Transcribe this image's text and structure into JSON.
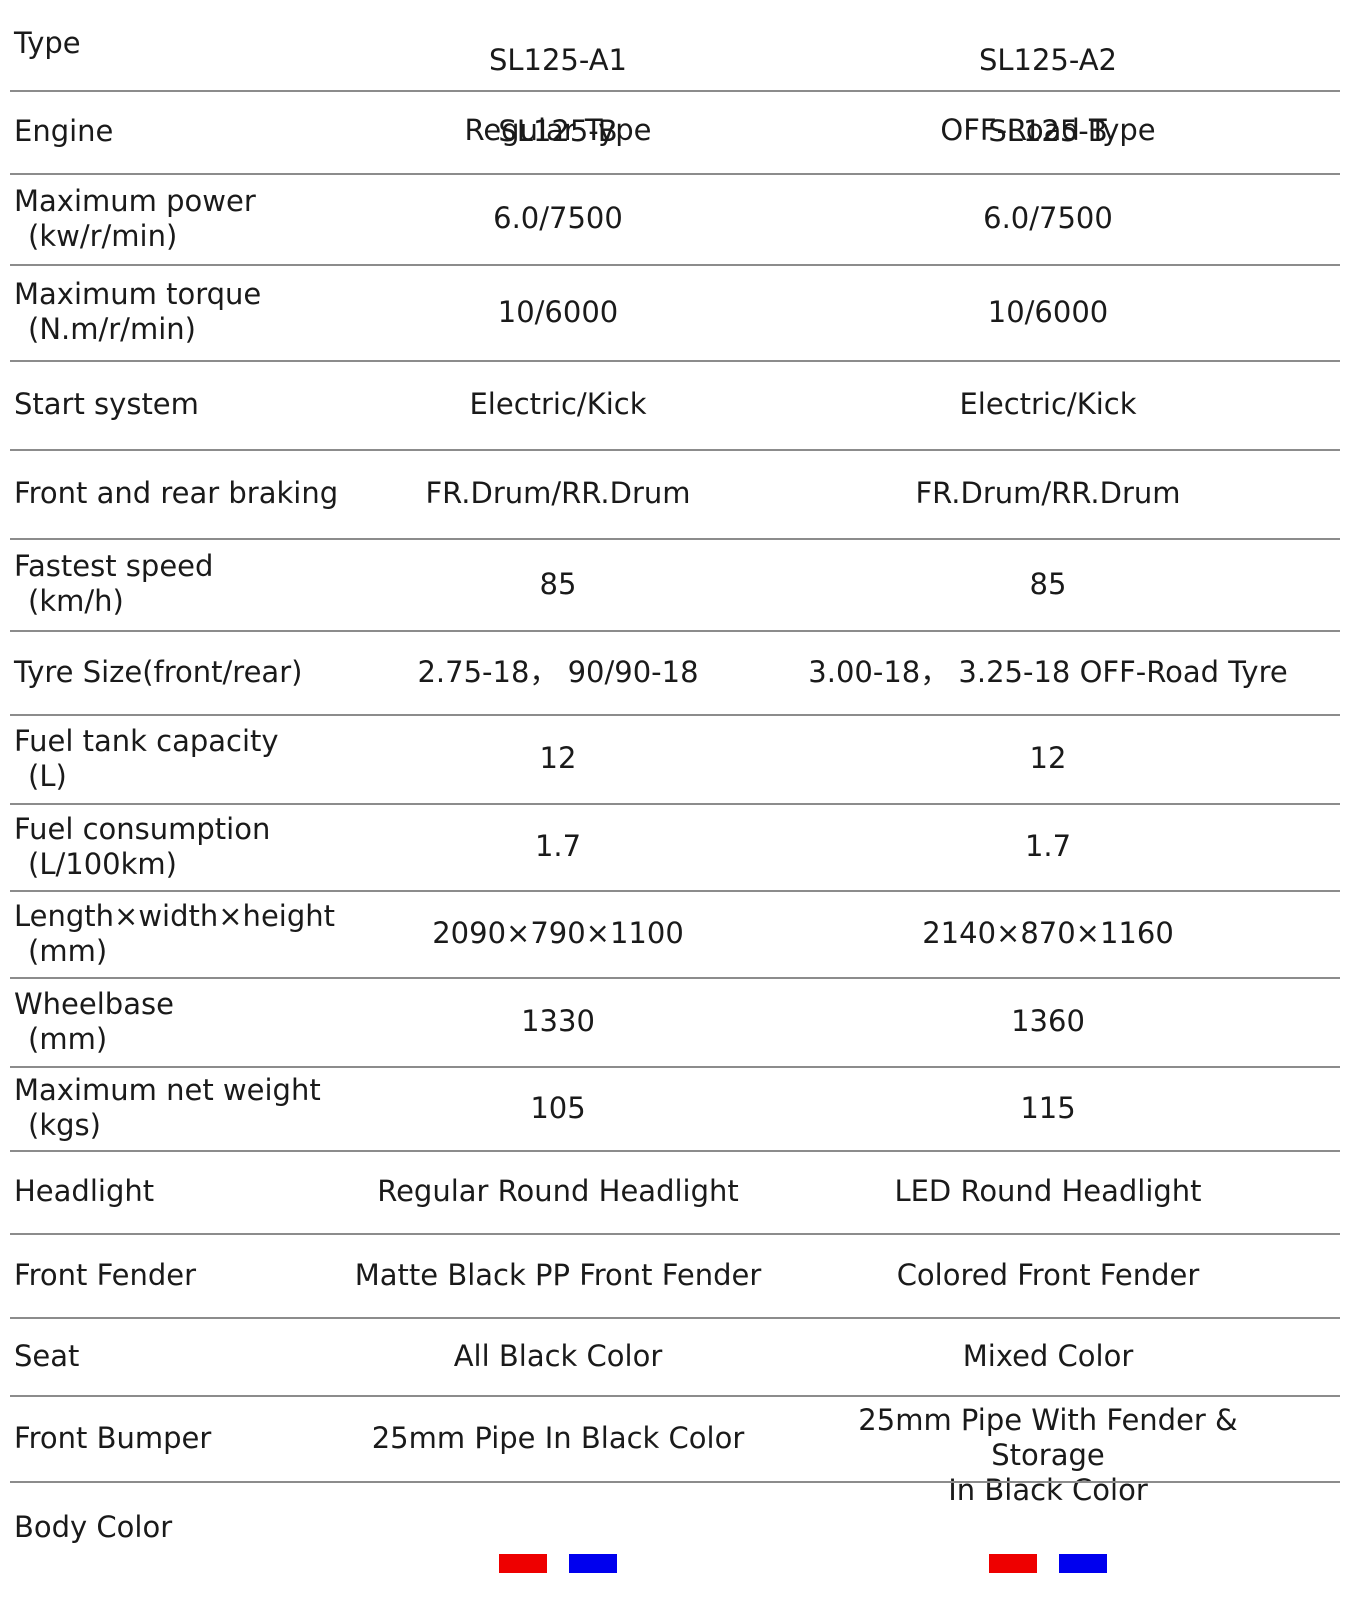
{
  "header": {
    "label": "Type",
    "model_a": "SL125-A1",
    "model_a_type": "Regular Type",
    "model_b": "SL125-A2",
    "model_b_type": "OFF-Road Type"
  },
  "rows": [
    {
      "label": "Engine",
      "sub": "",
      "a": "SL125-B",
      "b": "SL125-B"
    },
    {
      "label": "Maximum power",
      "sub": "(kw/r/min)",
      "a": "6.0/7500",
      "b": "6.0/7500"
    },
    {
      "label": "Maximum torque",
      "sub": "(N.m/r/min)",
      "a": "10/6000",
      "b": "10/6000"
    },
    {
      "label": "Start system",
      "sub": "",
      "a": "Electric/Kick",
      "b": "Electric/Kick"
    },
    {
      "label": "Front and rear braking",
      "sub": "",
      "a": "FR.Drum/RR.Drum",
      "b": "FR.Drum/RR.Drum"
    },
    {
      "label": "Fastest speed",
      "sub": "(km/h)",
      "a": "85",
      "b": "85"
    },
    {
      "label": "Tyre Size(front/rear)",
      "sub": "",
      "a": "2.75-18， 90/90-18",
      "b": "3.00-18， 3.25-18 OFF-Road Tyre"
    },
    {
      "label": "Fuel tank capacity",
      "sub": "(L)",
      "a": "12",
      "b": "12"
    },
    {
      "label": "Fuel consumption",
      "sub": "(L/100km)",
      "a": "1.7",
      "b": "1.7"
    },
    {
      "label": "Length×width×height",
      "sub": "(mm)",
      "a": "2090×790×1100",
      "b": "2140×870×1160"
    },
    {
      "label": "Wheelbase",
      "sub": "(mm)",
      "a": "1330",
      "b": "1360"
    },
    {
      "label": "Maximum net weight",
      "sub": "(kgs)",
      "a": "105",
      "b": "115"
    },
    {
      "label": "Headlight",
      "sub": "",
      "a": "Regular Round Headlight",
      "b": "LED Round Headlight"
    },
    {
      "label": "Front Fender",
      "sub": "",
      "a": "Matte Black PP Front Fender",
      "b": "Colored Front Fender"
    },
    {
      "label": "Seat",
      "sub": "",
      "a": "All Black Color",
      "b": "Mixed Color"
    },
    {
      "label": "Front Bumper",
      "sub": "",
      "a": "25mm Pipe In Black Color",
      "b": "25mm Pipe With Fender & Storage\nIn Black Color"
    }
  ],
  "body_color": {
    "label": "Body Color",
    "a_swatches": [
      "#ee0000",
      "#0000ee"
    ],
    "b_swatches": [
      "#ee0000",
      "#0000ee"
    ]
  }
}
